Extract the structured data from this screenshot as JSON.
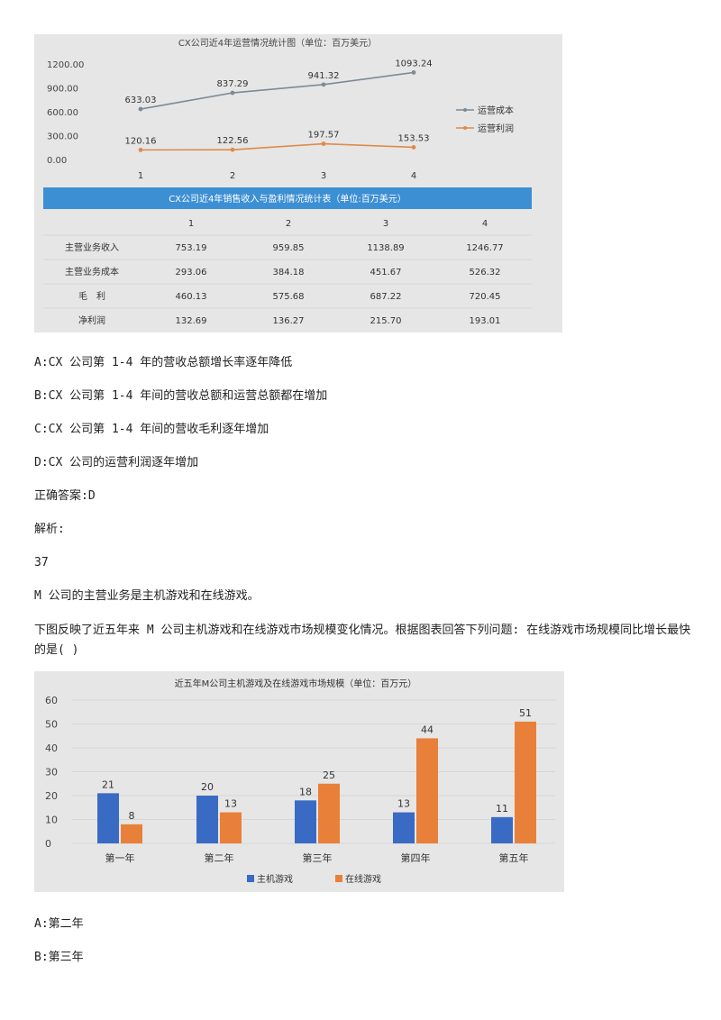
{
  "figure1": {
    "chart_data": {
      "type": "line",
      "title": "CX公司近4年运营情况统计图（单位：百万美元）",
      "categories": [
        "1",
        "2",
        "3",
        "4"
      ],
      "y_ticks": [
        "1200.00",
        "900.00",
        "600.00",
        "300.00",
        "0.00"
      ],
      "ylim": [
        0,
        1200
      ],
      "series": [
        {
          "name": "运营成本",
          "values": [
            633.03,
            837.29,
            941.32,
            1093.24
          ],
          "labels": [
            "633.03",
            "837.29",
            "941.32",
            "1093.24"
          ],
          "color": "#7d8a96"
        },
        {
          "name": "运营利润",
          "values": [
            120.16,
            122.56,
            197.57,
            153.53
          ],
          "labels": [
            "120.16",
            "122.56",
            "197.57",
            "153.53"
          ],
          "color": "#e08a4a"
        }
      ],
      "legend": "right"
    },
    "table": {
      "title": "CX公司近4年销售收入与盈利情况统计表（单位:百万美元）",
      "header_color": "#3d8fd4",
      "columns": [
        "1",
        "2",
        "3",
        "4"
      ],
      "rows": [
        {
          "label": "主营业务收入",
          "cells": [
            "753.19",
            "959.85",
            "1138.89",
            "1246.77"
          ]
        },
        {
          "label": "主营业务成本",
          "cells": [
            "293.06",
            "384.18",
            "451.67",
            "526.32"
          ]
        },
        {
          "label": "毛　利",
          "cells": [
            "460.13",
            "575.68",
            "687.22",
            "720.45"
          ]
        },
        {
          "label": "净利润",
          "cells": [
            "132.69",
            "136.27",
            "215.70",
            "193.01"
          ]
        }
      ]
    }
  },
  "texts": {
    "optA": "A:CX 公司第 1-4 年的营收总额增长率逐年降低",
    "optB": "B:CX 公司第 1-4 年间的营收总额和运营总额都在增加",
    "optC": "C:CX 公司第 1-4 年间的营收毛利逐年增加",
    "optD": "D:CX 公司的运营利润逐年增加",
    "answer": "正确答案:D",
    "analysis": "解析:",
    "qnum": "37",
    "intro": "M 公司的主营业务是主机游戏和在线游戏。",
    "question": "下图反映了近五年来 M 公司主机游戏和在线游戏市场规模变化情况。根据图表回答下列问题: 在线游戏市场规模同比增长最快的是( )",
    "optA2": "A:第二年",
    "optB2": "B:第三年"
  },
  "figure2": {
    "chart_data": {
      "type": "bar",
      "title": "近五年M公司主机游戏及在线游戏市场规模（单位：百万元）",
      "categories": [
        "第一年",
        "第二年",
        "第三年",
        "第四年",
        "第五年"
      ],
      "y_ticks": [
        "60",
        "50",
        "40",
        "30",
        "20",
        "10",
        "0"
      ],
      "ylim": [
        0,
        60
      ],
      "series": [
        {
          "name": "主机游戏",
          "values": [
            21,
            20,
            18,
            13,
            11
          ],
          "color": "#3a6bc4"
        },
        {
          "name": "在线游戏",
          "values": [
            8,
            13,
            25,
            44,
            51
          ],
          "color": "#e8803a"
        }
      ],
      "legend": "bottom"
    }
  }
}
